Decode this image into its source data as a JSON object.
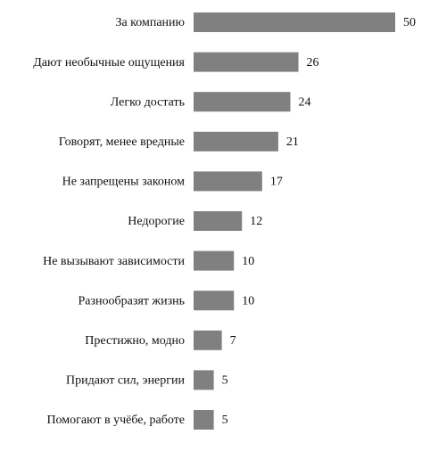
{
  "chart_data": {
    "type": "bar",
    "orientation": "horizontal",
    "categories": [
      "За компанию",
      "Дают необычные ощущения",
      "Легко достать",
      "Говорят, менее вредные",
      "Не запрещены законом",
      "Недорогие",
      "Не вызывают зависимости",
      "Разнообразят жизнь",
      "Престижно, модно",
      "Придают сил, энергии",
      "Помогают в учёбе, работе"
    ],
    "values": [
      50,
      26,
      24,
      21,
      17,
      12,
      10,
      10,
      7,
      5,
      5
    ],
    "color": "#808080"
  }
}
